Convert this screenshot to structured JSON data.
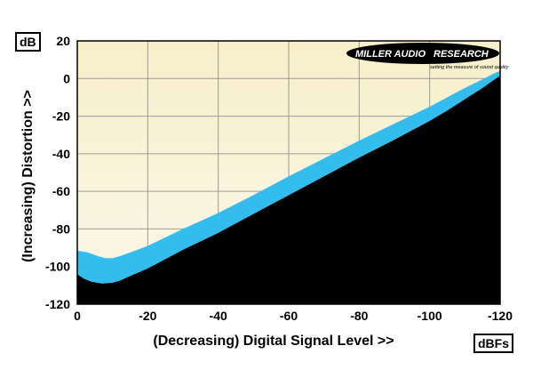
{
  "y_unit_label": "dB",
  "x_unit_label": "dBFs",
  "logo": {
    "name_left": "MILLER AUDIO",
    "name_right": "RESEARCH",
    "tagline": "setting the measure of sound quality"
  },
  "colors": {
    "background_fill": "#f8f2d8",
    "band_fill": "#33bcee",
    "below_fill": "#000000",
    "grid": "#9a9a9a"
  },
  "chart_data": {
    "type": "area",
    "xlabel": "(Decreasing) Digital Signal Level >>",
    "ylabel": "(Increasing) Distortion >>",
    "xlim": [
      0,
      -120
    ],
    "ylim": [
      -120,
      20
    ],
    "x_ticks": [
      "0",
      "-20",
      "-40",
      "-60",
      "-80",
      "-100",
      "-120"
    ],
    "y_ticks": [
      "20",
      "0",
      "-20",
      "-40",
      "-60",
      "-80",
      "-100",
      "-120"
    ],
    "grid": true,
    "series": [
      {
        "name": "upper",
        "points": [
          [
            0,
            -91.5
          ],
          [
            -3,
            -92.5
          ],
          [
            -6,
            -94.5
          ],
          [
            -8,
            -95.5
          ],
          [
            -10,
            -95.5
          ],
          [
            -12,
            -94.5
          ],
          [
            -15,
            -92.5
          ],
          [
            -20,
            -89
          ],
          [
            -25,
            -84.5
          ],
          [
            -30,
            -80
          ],
          [
            -40,
            -71.5
          ],
          [
            -50,
            -62
          ],
          [
            -60,
            -52
          ],
          [
            -70,
            -42.5
          ],
          [
            -80,
            -33
          ],
          [
            -90,
            -24
          ],
          [
            -100,
            -15
          ],
          [
            -105,
            -10
          ],
          [
            -110,
            -5
          ],
          [
            -115,
            -0.5
          ],
          [
            -118,
            2.5
          ],
          [
            -120,
            4
          ]
        ]
      },
      {
        "name": "lower",
        "points": [
          [
            0,
            -104
          ],
          [
            -2,
            -106.5
          ],
          [
            -4,
            -108
          ],
          [
            -7,
            -109
          ],
          [
            -10,
            -108.5
          ],
          [
            -12,
            -107.5
          ],
          [
            -15,
            -105
          ],
          [
            -20,
            -101
          ],
          [
            -25,
            -96
          ],
          [
            -30,
            -91
          ],
          [
            -40,
            -82
          ],
          [
            -50,
            -72
          ],
          [
            -60,
            -62
          ],
          [
            -70,
            -52
          ],
          [
            -80,
            -42
          ],
          [
            -90,
            -32.5
          ],
          [
            -100,
            -22.5
          ],
          [
            -105,
            -17
          ],
          [
            -110,
            -11
          ],
          [
            -115,
            -5
          ],
          [
            -118,
            -1
          ],
          [
            -120,
            1.5
          ]
        ]
      }
    ]
  }
}
